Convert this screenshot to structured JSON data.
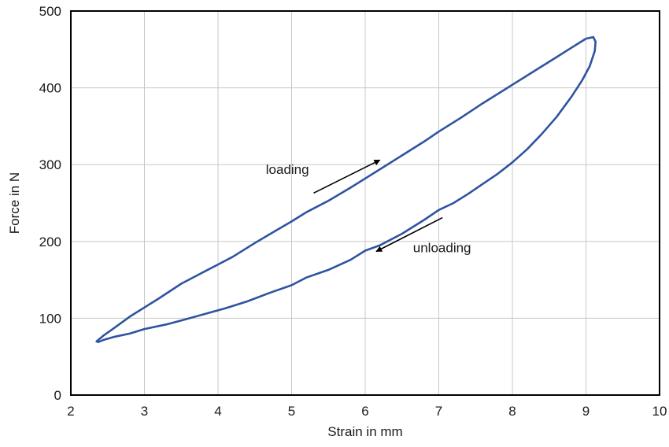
{
  "chart_data": {
    "type": "line",
    "title": "",
    "xlabel": "Strain in mm",
    "ylabel": "Force in N",
    "xlim": [
      2,
      10
    ],
    "ylim": [
      0,
      500
    ],
    "xticks": [
      2,
      3,
      4,
      5,
      6,
      7,
      8,
      9,
      10
    ],
    "yticks": [
      0,
      100,
      200,
      300,
      400,
      500
    ],
    "grid": true,
    "legend": "none",
    "series": [
      {
        "color": "#2e54a0",
        "x": [
          2.35,
          2.45,
          2.6,
          2.8,
          3.0,
          3.2,
          3.5,
          3.8,
          4.0,
          4.2,
          4.5,
          4.8,
          5.0,
          5.2,
          5.5,
          5.8,
          6.0,
          6.2,
          6.5,
          6.8,
          7.0,
          7.3,
          7.6,
          7.9,
          8.0,
          8.3,
          8.6,
          8.8,
          8.9,
          9.0,
          9.1,
          9.13,
          9.12,
          9.05,
          8.95,
          8.8,
          8.6,
          8.4,
          8.2,
          8.0,
          7.8,
          7.6,
          7.4,
          7.2,
          7.0,
          6.8,
          6.5,
          6.2,
          6.0,
          5.8,
          5.5,
          5.2,
          5.0,
          4.7,
          4.4,
          4.1,
          3.8,
          3.5,
          3.3,
          3.0,
          2.8,
          2.6,
          2.45,
          2.37,
          2.35
        ],
        "y": [
          70,
          78,
          88,
          102,
          114,
          126,
          145,
          160,
          170,
          180,
          198,
          215,
          226,
          238,
          253,
          270,
          282,
          294,
          312,
          330,
          343,
          361,
          380,
          398,
          404,
          422,
          440,
          452,
          458,
          464,
          466,
          460,
          448,
          428,
          410,
          388,
          362,
          340,
          320,
          303,
          288,
          275,
          262,
          250,
          241,
          228,
          210,
          195,
          188,
          176,
          163,
          153,
          143,
          133,
          122,
          113,
          105,
          97,
          92,
          86,
          80,
          76,
          72,
          69,
          70
        ]
      }
    ],
    "annotations": [
      {
        "text": "loading",
        "x": 4.65,
        "y": 288
      },
      {
        "text": "unloading",
        "x": 6.65,
        "y": 186
      }
    ],
    "arrows": [
      {
        "from": [
          5.3,
          263
        ],
        "to": [
          6.2,
          306
        ]
      },
      {
        "from": [
          7.05,
          231
        ],
        "to": [
          6.15,
          187
        ]
      }
    ]
  }
}
